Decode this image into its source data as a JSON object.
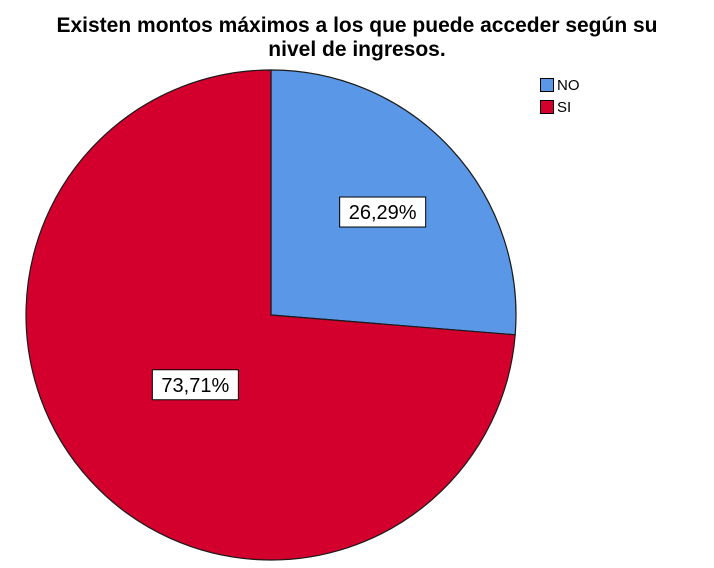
{
  "chart_data": {
    "type": "pie",
    "title_lines": [
      "Existen montos máximos a los que puede acceder según su",
      "nivel de ingresos."
    ],
    "categories": [
      "NO",
      "SI"
    ],
    "values": [
      26.29,
      73.71
    ],
    "labels": [
      "26,29%",
      "73,71%"
    ],
    "colors": [
      "#5a97e6",
      "#d3002d"
    ],
    "legend_position": "top-right",
    "start_angle": "12 o'clock",
    "direction": "clockwise"
  }
}
